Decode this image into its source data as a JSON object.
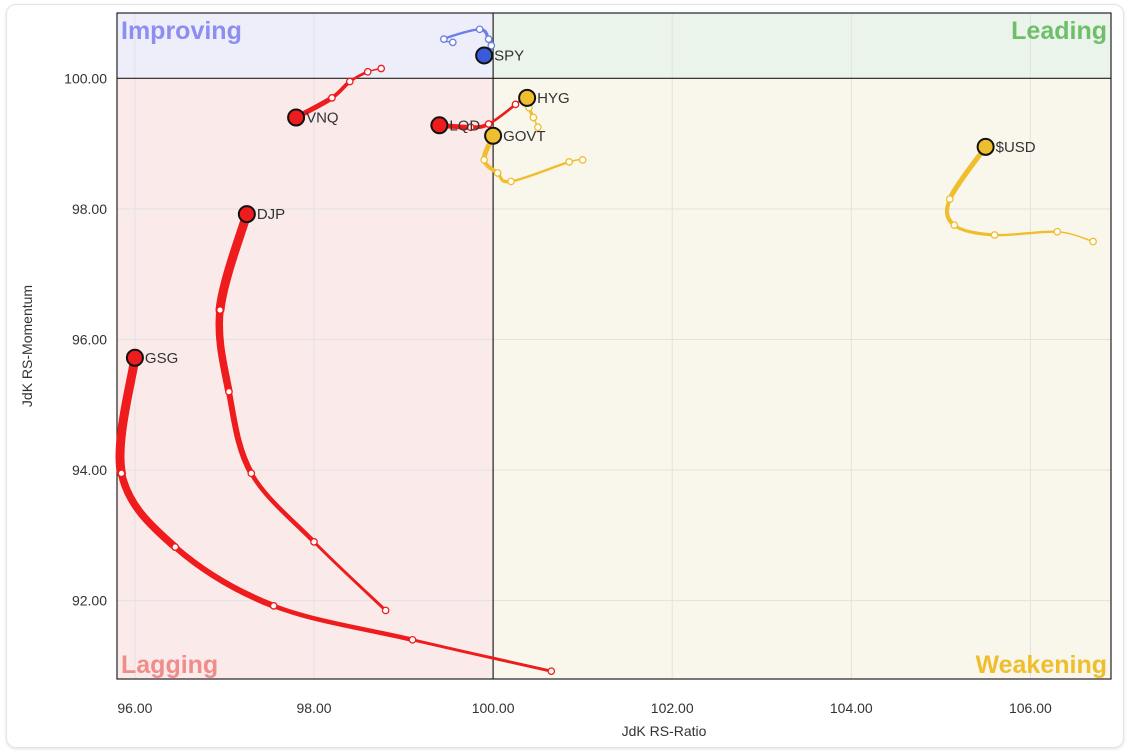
{
  "chart_data": {
    "type": "scatter",
    "xlabel": "JdK RS-Ratio",
    "ylabel": "JdK RS-Momentum",
    "xlim": [
      95.8,
      106.9
    ],
    "ylim": [
      90.8,
      101.0
    ],
    "xticks": [
      "96.00",
      "98.00",
      "100.00",
      "102.00",
      "104.00",
      "106.00"
    ],
    "yticks": [
      "92.00",
      "94.00",
      "96.00",
      "98.00",
      "100.00"
    ],
    "xtick_values": [
      96,
      98,
      100,
      102,
      104,
      106
    ],
    "ytick_values": [
      92,
      94,
      96,
      98,
      100
    ],
    "grid": true,
    "center": [
      100,
      100
    ],
    "quadrants": {
      "improving": {
        "label": "Improving",
        "color": "#8c8ef0",
        "fill": "#eeeefa"
      },
      "leading": {
        "label": "Leading",
        "color": "#6fbf6a",
        "fill": "#eaf4ea"
      },
      "lagging": {
        "label": "Lagging",
        "color": "#f08c8c",
        "fill": "#faeaea"
      },
      "weakening": {
        "label": "Weakening",
        "color": "#efbe2d",
        "fill": "#f9f6ec"
      }
    },
    "series": [
      {
        "name": "SPY",
        "color": "#3a5bd9",
        "trail": "#6b7fe6",
        "points": [
          [
            99.55,
            100.55
          ],
          [
            99.45,
            100.6
          ],
          [
            99.85,
            100.75
          ],
          [
            99.95,
            100.6
          ],
          [
            99.98,
            100.5
          ],
          [
            99.9,
            100.35
          ]
        ]
      },
      {
        "name": "VNQ",
        "color": "#ee1c1c",
        "trail": "#ee1c1c",
        "points": [
          [
            98.75,
            100.15
          ],
          [
            98.6,
            100.1
          ],
          [
            98.4,
            99.95
          ],
          [
            98.2,
            99.7
          ],
          [
            97.8,
            99.4
          ]
        ]
      },
      {
        "name": "LQD",
        "color": "#ee1c1c",
        "trail": "#ee1c1c",
        "points": [
          [
            100.35,
            99.75
          ],
          [
            100.25,
            99.6
          ],
          [
            99.95,
            99.3
          ],
          [
            99.75,
            99.25
          ],
          [
            99.4,
            99.28
          ]
        ]
      },
      {
        "name": "HYG",
        "color": "#efbe2d",
        "trail": "#efbe2d",
        "points": [
          [
            100.5,
            99.25
          ],
          [
            100.45,
            99.4
          ],
          [
            100.4,
            99.55
          ],
          [
            100.38,
            99.7
          ]
        ]
      },
      {
        "name": "GOVT",
        "color": "#efbe2d",
        "trail": "#efbe2d",
        "points": [
          [
            101.0,
            98.75
          ],
          [
            100.85,
            98.72
          ],
          [
            100.2,
            98.42
          ],
          [
            100.05,
            98.55
          ],
          [
            99.9,
            98.75
          ],
          [
            100.0,
            99.12
          ]
        ]
      },
      {
        "name": "$USD",
        "color": "#efbe2d",
        "trail": "#efbe2d",
        "points": [
          [
            106.7,
            97.5
          ],
          [
            106.3,
            97.65
          ],
          [
            105.6,
            97.6
          ],
          [
            105.15,
            97.75
          ],
          [
            105.1,
            98.15
          ],
          [
            105.5,
            98.95
          ]
        ]
      },
      {
        "name": "DJP",
        "color": "#ee1c1c",
        "trail": "#ee1c1c",
        "points": [
          [
            98.8,
            91.85
          ],
          [
            98.0,
            92.9
          ],
          [
            97.3,
            93.95
          ],
          [
            97.05,
            95.2
          ],
          [
            96.95,
            96.45
          ],
          [
            97.25,
            97.92
          ]
        ]
      },
      {
        "name": "GSG",
        "color": "#ee1c1c",
        "trail": "#ee1c1c",
        "points": [
          [
            100.65,
            90.92
          ],
          [
            99.1,
            91.4
          ],
          [
            97.55,
            91.92
          ],
          [
            96.45,
            92.82
          ],
          [
            95.85,
            93.95
          ],
          [
            96.0,
            95.72
          ]
        ]
      }
    ]
  }
}
